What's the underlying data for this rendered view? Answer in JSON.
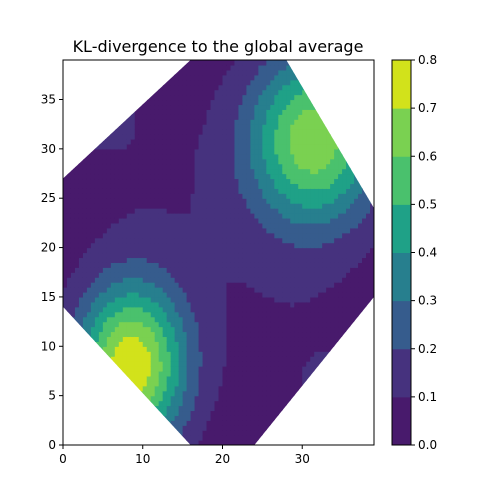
{
  "chart_data": {
    "type": "heatmap",
    "subtype": "filled-contour",
    "title": "KL-divergence to the global average",
    "xlabel": "",
    "ylabel": "",
    "xlim": [
      0,
      39
    ],
    "ylim": [
      0,
      39
    ],
    "x_ticks": [
      "0",
      "10",
      "20",
      "30"
    ],
    "y_ticks": [
      "0",
      "5",
      "10",
      "15",
      "20",
      "25",
      "30",
      "35"
    ],
    "colorbar": {
      "ticks": [
        "0.0",
        "0.1",
        "0.2",
        "0.3",
        "0.4",
        "0.5",
        "0.6",
        "0.7",
        "0.8"
      ],
      "levels": [
        0.0,
        0.1,
        0.2,
        0.3,
        0.4,
        0.5,
        0.6,
        0.7,
        0.8
      ],
      "colors": [
        "#481a6c",
        "#46327e",
        "#365c8d",
        "#277f8e",
        "#1fa187",
        "#4ac16d",
        "#7ad151",
        "#d2e21b"
      ]
    },
    "domain": "octagonal region of the grid (corners cut off)",
    "extrema": [
      {
        "x": 8.5,
        "y": 8.0,
        "value": 0.77
      },
      {
        "x": 31.5,
        "y": 31.0,
        "value": 0.66
      }
    ],
    "grid": false
  }
}
